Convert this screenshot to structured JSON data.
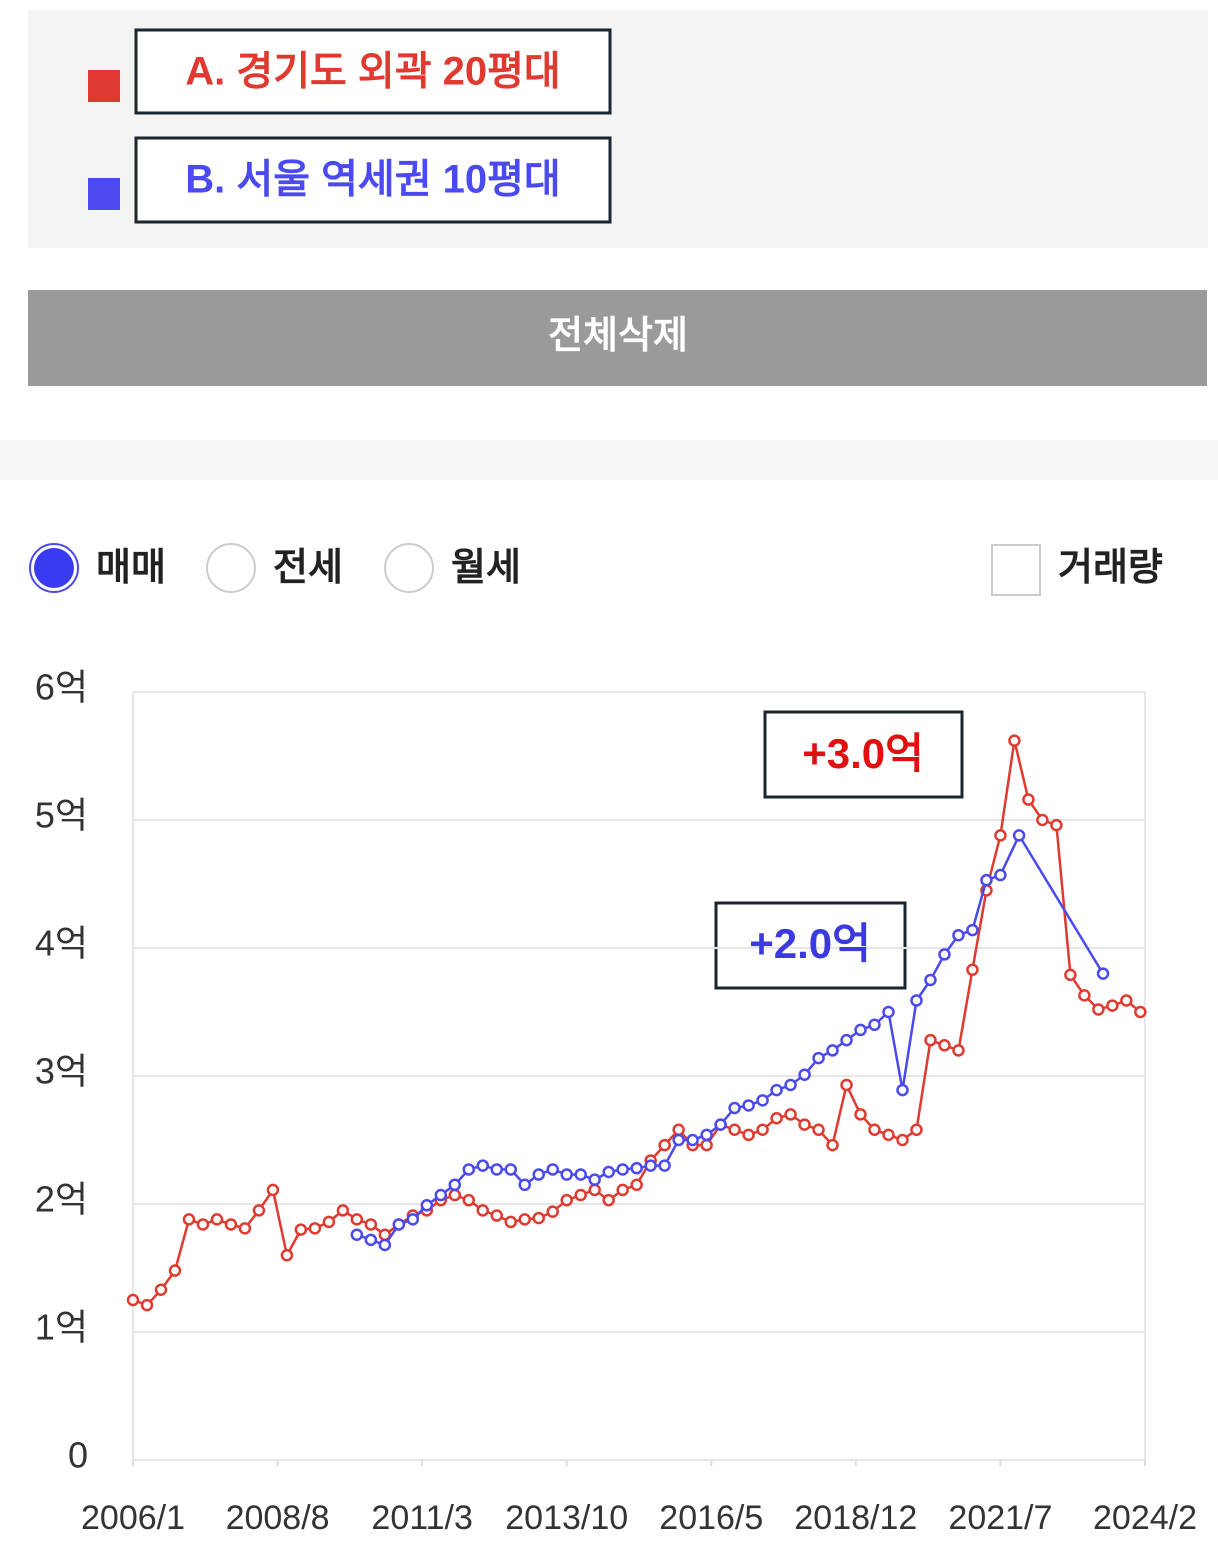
{
  "controls": {
    "delete_button": "전체삭제",
    "radios": [
      "매매",
      "전세",
      "월세"
    ],
    "selected_radio": 0,
    "checkbox": "거래량",
    "checkbox_checked": false
  },
  "chart_data": {
    "type": "line",
    "annotations": [
      {
        "text": "+3.0억",
        "color": "#e01010"
      },
      {
        "text": "+2.0억",
        "color": "#3a3ae0"
      }
    ],
    "xlim": [
      "2006/1",
      "2024/2"
    ],
    "xticks": [
      "2006/1",
      "2008/8",
      "2011/3",
      "2013/10",
      "2016/5",
      "2018/12",
      "2021/7",
      "2024/2"
    ],
    "ylim": [
      0,
      6
    ],
    "yticks": [
      0,
      {
        "value": 1,
        "label": "1억"
      },
      {
        "value": 2,
        "label": "2억"
      },
      {
        "value": 3,
        "label": "3억"
      },
      {
        "value": 4,
        "label": "4억"
      },
      {
        "value": 5,
        "label": "5억"
      },
      {
        "value": 6,
        "label": "6억"
      }
    ],
    "grid": true,
    "series": [
      {
        "name": "A. 경기도 외곽 20평대",
        "color": "#e03a30",
        "x": [
          "2006/1",
          "2006/4",
          "2006/7",
          "2006/10",
          "2007/1",
          "2007/4",
          "2007/7",
          "2007/10",
          "2008/1",
          "2008/4",
          "2008/7",
          "2008/10",
          "2009/1",
          "2009/4",
          "2009/7",
          "2009/10",
          "2010/1",
          "2010/4",
          "2010/7",
          "2010/10",
          "2011/1",
          "2011/4",
          "2011/7",
          "2011/10",
          "2012/1",
          "2012/4",
          "2012/7",
          "2012/10",
          "2013/1",
          "2013/4",
          "2013/7",
          "2013/10",
          "2014/1",
          "2014/4",
          "2014/7",
          "2014/10",
          "2015/1",
          "2015/4",
          "2015/7",
          "2015/10",
          "2016/1",
          "2016/4",
          "2016/7",
          "2016/10",
          "2017/1",
          "2017/4",
          "2017/7",
          "2017/10",
          "2018/1",
          "2018/4",
          "2018/7",
          "2018/10",
          "2019/1",
          "2019/4",
          "2019/7",
          "2019/10",
          "2020/1",
          "2020/4",
          "2020/7",
          "2020/10",
          "2021/1",
          "2021/4",
          "2021/7",
          "2021/10",
          "2022/1",
          "2022/4",
          "2022/7",
          "2022/10",
          "2023/1",
          "2023/4",
          "2023/7",
          "2023/10",
          "2024/1"
        ],
        "values": [
          1.25,
          1.21,
          1.33,
          1.48,
          1.88,
          1.84,
          1.88,
          1.84,
          1.81,
          1.95,
          2.11,
          1.6,
          1.8,
          1.81,
          1.86,
          1.95,
          1.88,
          1.84,
          1.76,
          1.84,
          1.91,
          1.95,
          2.03,
          2.07,
          2.03,
          1.95,
          1.91,
          1.86,
          1.88,
          1.89,
          1.94,
          2.03,
          2.07,
          2.11,
          2.03,
          2.11,
          2.15,
          2.34,
          2.46,
          2.58,
          2.46,
          2.46,
          2.62,
          2.58,
          2.54,
          2.58,
          2.67,
          2.7,
          2.62,
          2.58,
          2.46,
          2.93,
          2.7,
          2.58,
          2.54,
          2.5,
          2.58,
          3.28,
          3.24,
          3.2,
          3.83,
          4.45,
          4.88,
          5.62,
          5.16,
          5.0,
          4.96,
          3.79,
          3.63,
          3.52,
          3.55,
          3.59,
          3.5
        ]
      },
      {
        "name": "B. 서울 역세권 10평대",
        "color": "#4a4af0",
        "x": [
          "2010/1",
          "2010/4",
          "2010/7",
          "2010/10",
          "2011/1",
          "2011/4",
          "2011/7",
          "2011/10",
          "2012/1",
          "2012/4",
          "2012/7",
          "2012/10",
          "2013/1",
          "2013/4",
          "2013/7",
          "2013/10",
          "2014/1",
          "2014/4",
          "2014/7",
          "2014/10",
          "2015/1",
          "2015/4",
          "2015/7",
          "2015/10",
          "2016/1",
          "2016/4",
          "2016/7",
          "2016/10",
          "2017/1",
          "2017/4",
          "2017/7",
          "2017/10",
          "2018/1",
          "2018/4",
          "2018/7",
          "2018/10",
          "2019/1",
          "2019/4",
          "2019/7",
          "2019/10",
          "2020/1",
          "2020/4",
          "2020/7",
          "2020/10",
          "2021/1",
          "2021/4",
          "2021/7",
          "2021/11",
          "2023/5"
        ],
        "values": [
          1.76,
          1.72,
          1.68,
          1.84,
          1.88,
          1.99,
          2.07,
          2.15,
          2.27,
          2.3,
          2.27,
          2.27,
          2.15,
          2.23,
          2.27,
          2.23,
          2.23,
          2.19,
          2.25,
          2.27,
          2.28,
          2.3,
          2.3,
          2.5,
          2.5,
          2.54,
          2.62,
          2.75,
          2.77,
          2.81,
          2.89,
          2.93,
          3.01,
          3.14,
          3.2,
          3.28,
          3.36,
          3.4,
          3.5,
          2.89,
          3.59,
          3.75,
          3.95,
          4.1,
          4.14,
          4.53,
          4.57,
          4.88,
          3.8
        ]
      }
    ]
  }
}
